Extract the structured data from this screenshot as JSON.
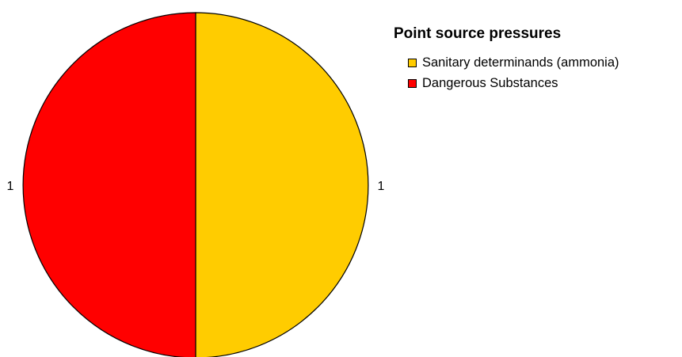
{
  "chart_data": {
    "type": "pie",
    "title": "Point source pressures",
    "legend_position": "top-right",
    "slices": [
      {
        "name": "Sanitary determinands (ammonia)",
        "value": 1,
        "label": "1",
        "color": "#FFCC00"
      },
      {
        "name": "Dangerous Substances",
        "value": 1,
        "label": "1",
        "color": "#FF0000"
      }
    ]
  }
}
